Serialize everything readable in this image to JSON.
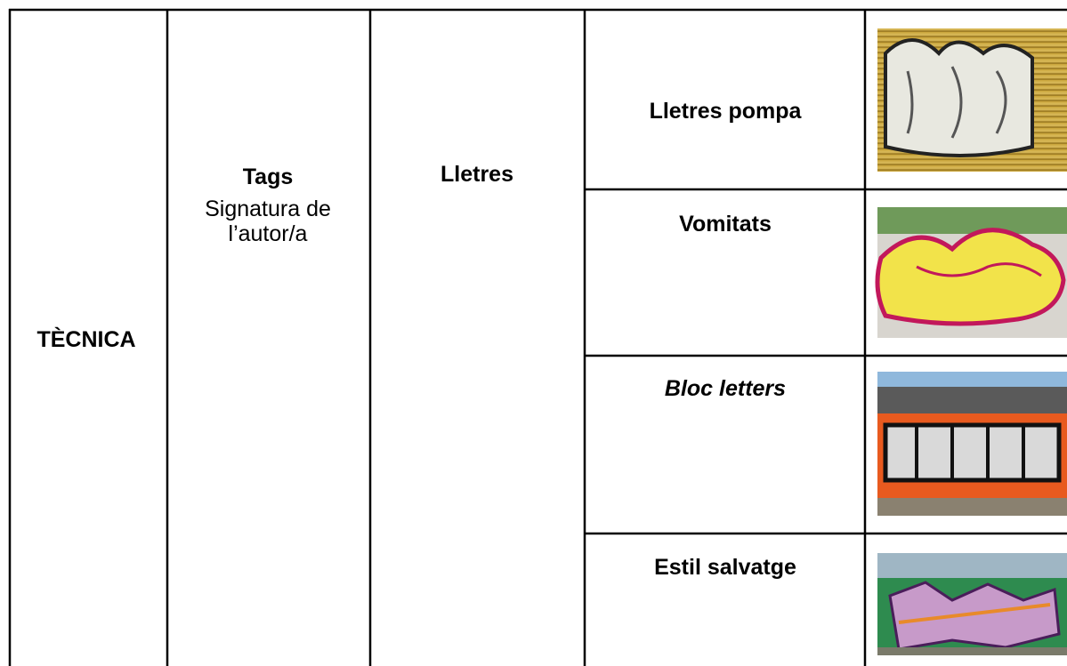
{
  "table": {
    "technique": "TÈCNICA",
    "type": {
      "title": "Tags",
      "description": [
        "Signatura de",
        "l’autor/a"
      ]
    },
    "category": "Lletres",
    "styles": [
      "Lletres pompa",
      "Vomitats",
      "Bloc letters",
      "Estil salvatge"
    ]
  }
}
